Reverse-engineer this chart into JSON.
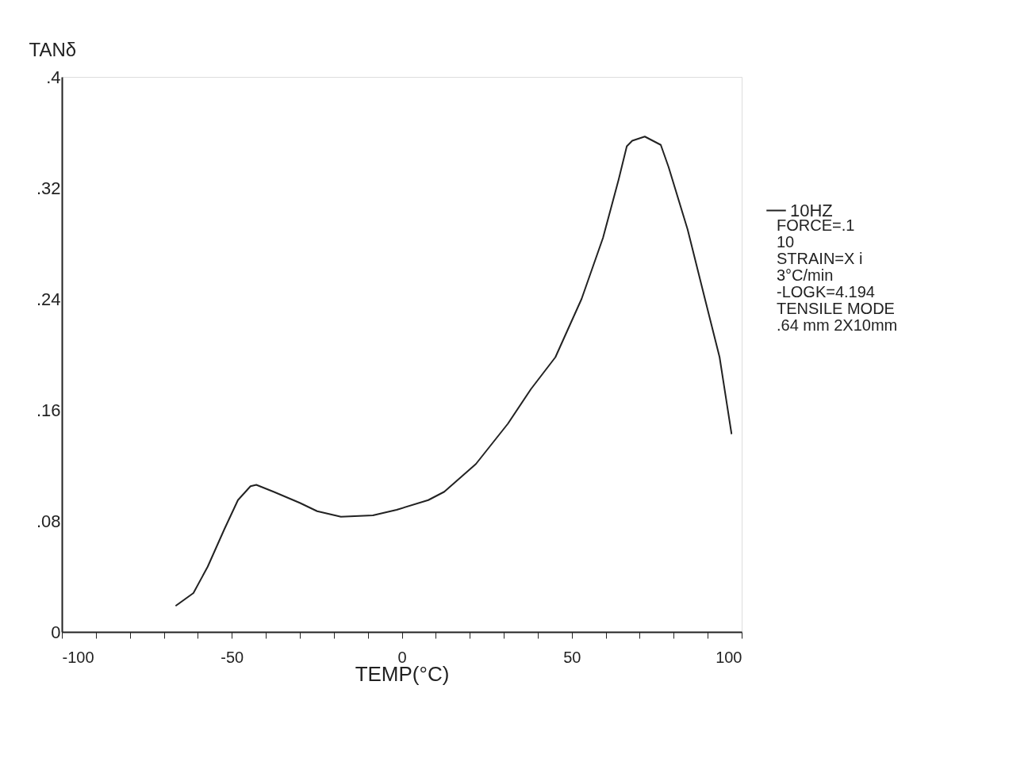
{
  "chart_data": {
    "type": "line",
    "xlabel": "TEMP(°C)",
    "ylabel": "TANδ",
    "xlim": [
      -100,
      100
    ],
    "xticks": [
      -100,
      {
        "value": -90,
        "label": null
      },
      {
        "value": -80,
        "label": null
      },
      {
        "value": -70,
        "label": null
      },
      {
        "value": -60,
        "label": null
      },
      -50,
      {
        "value": -40,
        "label": null
      },
      {
        "value": -30,
        "label": null
      },
      {
        "value": -20,
        "label": null
      },
      {
        "value": -10,
        "label": null
      },
      0,
      {
        "value": 10,
        "label": null
      },
      {
        "value": 20,
        "label": null
      },
      {
        "value": 30,
        "label": null
      },
      {
        "value": 40,
        "label": null
      },
      50,
      {
        "value": 60,
        "label": null
      },
      {
        "value": 70,
        "label": null
      },
      {
        "value": 80,
        "label": null
      },
      {
        "value": 90,
        "label": null
      },
      100
    ],
    "ylim": [
      0,
      0.4
    ],
    "yticks": [
      0,
      {
        "value": 0.08,
        "label": ".08"
      },
      {
        "value": 0.16,
        "label": ".16"
      },
      {
        "value": 0.24,
        "label": ".24"
      },
      {
        "value": 0.32,
        "label": ".32"
      },
      {
        "value": 0.4,
        "label": ".4"
      }
    ],
    "grid": false,
    "legend": "right",
    "marker": "none",
    "line_style": "solid",
    "series": [
      {
        "name": "10HZ",
        "color": "#222222",
        "x": [
          -66.4,
          -61.3,
          -57.1,
          -52.2,
          -48.2,
          -44.5,
          -42.8,
          -37.7,
          -30,
          -24.9,
          -17.9,
          -8.5,
          -1.5,
          7.8,
          12.5,
          21.8,
          31.2,
          38,
          45.2,
          52.9,
          59.2,
          63.8,
          66.2,
          67.8,
          71.5,
          76.2,
          78.5,
          84.1,
          89.5,
          93.5,
          97.0
        ],
        "values": [
          0.019,
          0.028,
          0.047,
          0.074,
          0.095,
          0.105,
          0.106,
          0.101,
          0.093,
          0.087,
          0.083,
          0.084,
          0.088,
          0.095,
          0.101,
          0.121,
          0.15,
          0.175,
          0.198,
          0.24,
          0.284,
          0.326,
          0.35,
          0.354,
          0.357,
          0.351,
          0.335,
          0.29,
          0.237,
          0.198,
          0.143
        ]
      }
    ],
    "annotations": [
      "FORCE=.1",
      "10",
      "STRAIN=X i",
      "3°C/min",
      "-LOGK=4.194",
      "TENSILE MODE",
      ".64 mm 2X10mm"
    ]
  }
}
